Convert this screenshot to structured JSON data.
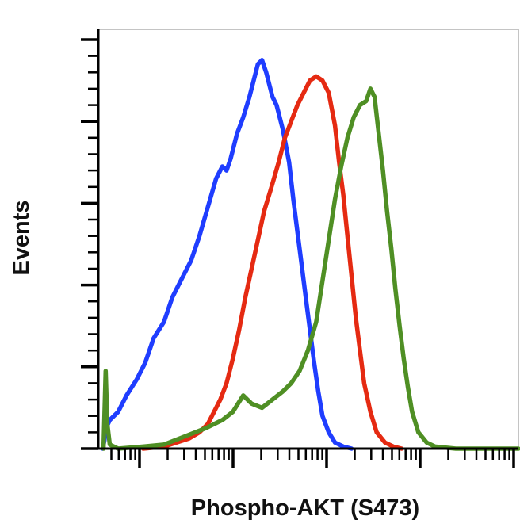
{
  "chart_data": {
    "type": "line",
    "title": "",
    "xlabel": "Phospho-AKT (S473)",
    "ylabel": "Events",
    "xlim": [
      0,
      100
    ],
    "ylim": [
      0,
      100
    ],
    "grid": false,
    "legend": "none",
    "x_scale": "log (fluorescence intensity, unlabeled)",
    "series": [
      {
        "color": "#1f3dff",
        "points": [
          [
            0.3,
            0
          ],
          [
            0.7,
            2
          ],
          [
            1.1,
            5
          ],
          [
            2,
            7
          ],
          [
            4,
            9
          ],
          [
            6,
            13
          ],
          [
            8.5,
            17
          ],
          [
            10.5,
            21
          ],
          [
            12.5,
            27
          ],
          [
            15,
            31
          ],
          [
            17,
            37
          ],
          [
            19,
            41
          ],
          [
            21.5,
            46
          ],
          [
            23.5,
            52
          ],
          [
            25.5,
            59
          ],
          [
            27.5,
            66
          ],
          [
            29,
            69
          ],
          [
            30,
            68
          ],
          [
            31,
            71
          ],
          [
            32.5,
            77
          ],
          [
            34,
            81
          ],
          [
            35.5,
            86
          ],
          [
            36.5,
            90
          ],
          [
            37.5,
            94
          ],
          [
            38.5,
            95
          ],
          [
            39.5,
            92
          ],
          [
            41,
            86
          ],
          [
            42,
            84
          ],
          [
            43.5,
            78
          ],
          [
            45,
            70
          ],
          [
            46,
            61
          ],
          [
            47,
            53
          ],
          [
            48,
            45
          ],
          [
            49,
            37
          ],
          [
            50,
            29
          ],
          [
            51,
            21
          ],
          [
            52,
            14
          ],
          [
            53,
            8
          ],
          [
            54.5,
            4
          ],
          [
            56,
            1.5
          ],
          [
            58,
            0.5
          ],
          [
            60,
            0
          ]
        ]
      },
      {
        "color": "#e52a12",
        "points": [
          [
            10,
            0
          ],
          [
            15,
            0.5
          ],
          [
            18,
            1.5
          ],
          [
            21,
            2.5
          ],
          [
            23.5,
            4
          ],
          [
            25.5,
            6
          ],
          [
            27,
            9
          ],
          [
            28.5,
            12
          ],
          [
            30,
            16
          ],
          [
            31.5,
            22
          ],
          [
            33,
            29
          ],
          [
            34.5,
            37
          ],
          [
            36,
            44
          ],
          [
            37.5,
            51
          ],
          [
            39,
            58
          ],
          [
            40.5,
            63
          ],
          [
            42.5,
            70
          ],
          [
            44,
            76
          ],
          [
            45.5,
            80
          ],
          [
            47,
            84
          ],
          [
            48.5,
            87
          ],
          [
            50,
            90
          ],
          [
            51.5,
            91
          ],
          [
            53,
            90
          ],
          [
            54.5,
            87
          ],
          [
            56,
            79
          ],
          [
            57,
            70
          ],
          [
            58,
            62
          ],
          [
            59,
            52
          ],
          [
            60,
            42
          ],
          [
            61,
            32
          ],
          [
            62,
            24
          ],
          [
            63,
            16
          ],
          [
            64.5,
            9
          ],
          [
            66,
            4
          ],
          [
            68,
            1.5
          ],
          [
            70,
            0.5
          ],
          [
            72,
            0
          ]
        ]
      },
      {
        "color": "#4f8f24",
        "points": [
          [
            0.5,
            0
          ],
          [
            1,
            19
          ],
          [
            1.4,
            6
          ],
          [
            2,
            1
          ],
          [
            4,
            0
          ],
          [
            10,
            0.5
          ],
          [
            15,
            1
          ],
          [
            20,
            3
          ],
          [
            25,
            5
          ],
          [
            29,
            7
          ],
          [
            31.5,
            9
          ],
          [
            34,
            13
          ],
          [
            36,
            11
          ],
          [
            38.5,
            10
          ],
          [
            41,
            12
          ],
          [
            43.5,
            14
          ],
          [
            45.5,
            16
          ],
          [
            47.5,
            19
          ],
          [
            49.5,
            24
          ],
          [
            51.5,
            31
          ],
          [
            53,
            41
          ],
          [
            54.5,
            51
          ],
          [
            56,
            61
          ],
          [
            57.5,
            69
          ],
          [
            59,
            76
          ],
          [
            60.5,
            81
          ],
          [
            62,
            84
          ],
          [
            63.5,
            85
          ],
          [
            64.5,
            88
          ],
          [
            65.5,
            86
          ],
          [
            66.5,
            77
          ],
          [
            67.5,
            68
          ],
          [
            68.5,
            58
          ],
          [
            69.5,
            49
          ],
          [
            70.5,
            39
          ],
          [
            71.5,
            30
          ],
          [
            72.5,
            22
          ],
          [
            73.5,
            15
          ],
          [
            74.5,
            9
          ],
          [
            76,
            4
          ],
          [
            78,
            1.5
          ],
          [
            80,
            0.5
          ],
          [
            85,
            0
          ],
          [
            100,
            0
          ]
        ]
      }
    ]
  }
}
